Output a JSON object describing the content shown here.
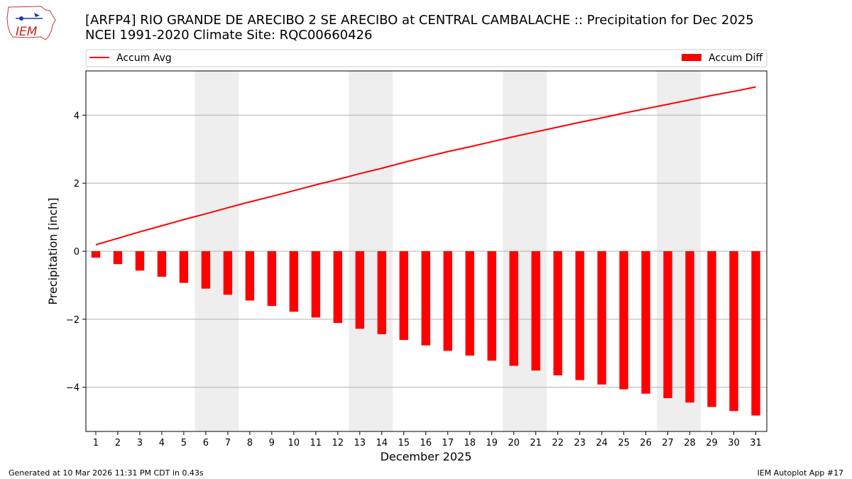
{
  "header": {
    "title_line1": "[ARFP4] RIO GRANDE DE ARECIBO 2 SE ARECIBO at CENTRAL CAMBALACHE :: Precipitation for Dec 2025",
    "title_line2": "NCEI 1991-2020 Climate Site: RQC00660426"
  },
  "logo": {
    "text": "IEM"
  },
  "footer": {
    "generated": "Generated at 10 Mar 2026 11:31 PM CDT in 0.43s",
    "app": "IEM Autoplot App #17"
  },
  "colors": {
    "series": "#ff0000",
    "weekend_shade": "#eeeeee",
    "grid": "#b0b0b0"
  },
  "chart_data": {
    "type": "bar",
    "xlabel": "December 2025",
    "ylabel": "Precipitation [inch]",
    "ylim": [
      -5.3,
      5.3
    ],
    "yticks": [
      -4,
      -2,
      0,
      2,
      4
    ],
    "ytick_labels": [
      "−4",
      "−2",
      "0",
      "2",
      "4"
    ],
    "grid": "horizontal",
    "legend_placement": "top, above plot",
    "categories": [
      "1",
      "2",
      "3",
      "4",
      "5",
      "6",
      "7",
      "8",
      "9",
      "10",
      "11",
      "12",
      "13",
      "14",
      "15",
      "16",
      "17",
      "18",
      "19",
      "20",
      "21",
      "22",
      "23",
      "24",
      "25",
      "26",
      "27",
      "28",
      "29",
      "30",
      "31"
    ],
    "weekend_days": [
      [
        6,
        7
      ],
      [
        13,
        14
      ],
      [
        20,
        21
      ],
      [
        27,
        28
      ]
    ],
    "series": [
      {
        "name": "Accum Avg",
        "kind": "line",
        "values": [
          0.19,
          0.38,
          0.57,
          0.75,
          0.93,
          1.1,
          1.28,
          1.45,
          1.61,
          1.78,
          1.95,
          2.11,
          2.28,
          2.44,
          2.61,
          2.77,
          2.93,
          3.07,
          3.22,
          3.37,
          3.51,
          3.65,
          3.79,
          3.92,
          4.06,
          4.19,
          4.32,
          4.45,
          4.58,
          4.7,
          4.83
        ]
      },
      {
        "name": "Accum Diff",
        "kind": "bar",
        "values": [
          -0.19,
          -0.38,
          -0.57,
          -0.75,
          -0.93,
          -1.1,
          -1.28,
          -1.45,
          -1.61,
          -1.78,
          -1.95,
          -2.11,
          -2.28,
          -2.44,
          -2.61,
          -2.77,
          -2.93,
          -3.07,
          -3.22,
          -3.37,
          -3.51,
          -3.65,
          -3.79,
          -3.92,
          -4.06,
          -4.19,
          -4.32,
          -4.45,
          -4.58,
          -4.7,
          -4.83
        ]
      }
    ]
  }
}
